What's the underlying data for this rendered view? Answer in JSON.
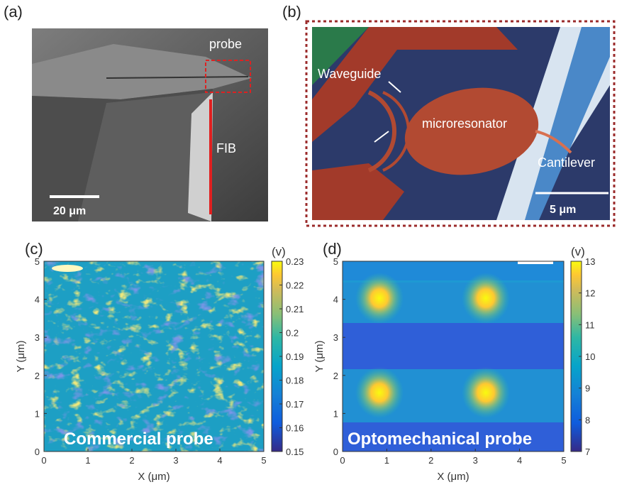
{
  "panels": [
    {
      "label": "(a)",
      "annotations": [
        "probe",
        "FIB"
      ],
      "scale_bar": "20 μm"
    },
    {
      "label": "(b)",
      "annotations": [
        "Waveguide",
        "microresonator",
        "Cantilever"
      ],
      "scale_bar": "5 μm"
    },
    {
      "label": "(c)",
      "caption": "Commercial probe",
      "x_label": "X (μm)",
      "y_label": "Y (μm)",
      "x_ticks": [
        0,
        1,
        2,
        3,
        4,
        5
      ],
      "y_ticks": [
        0,
        1,
        2,
        3,
        4,
        5
      ],
      "colorbar_unit": "(v)",
      "colorbar_ticks": [
        0.15,
        0.16,
        0.17,
        0.18,
        0.19,
        0.2,
        0.21,
        0.22,
        0.23
      ]
    },
    {
      "label": "(d)",
      "caption": "Optomechanical probe",
      "x_label": "X (μm)",
      "y_label": "Y (μm)",
      "x_ticks": [
        0,
        1,
        2,
        3,
        4,
        5
      ],
      "y_ticks": [
        0,
        1,
        2,
        3,
        4,
        5
      ],
      "colorbar_unit": "(v)",
      "colorbar_ticks": [
        7,
        8,
        9,
        10,
        11,
        12,
        13
      ]
    }
  ]
}
